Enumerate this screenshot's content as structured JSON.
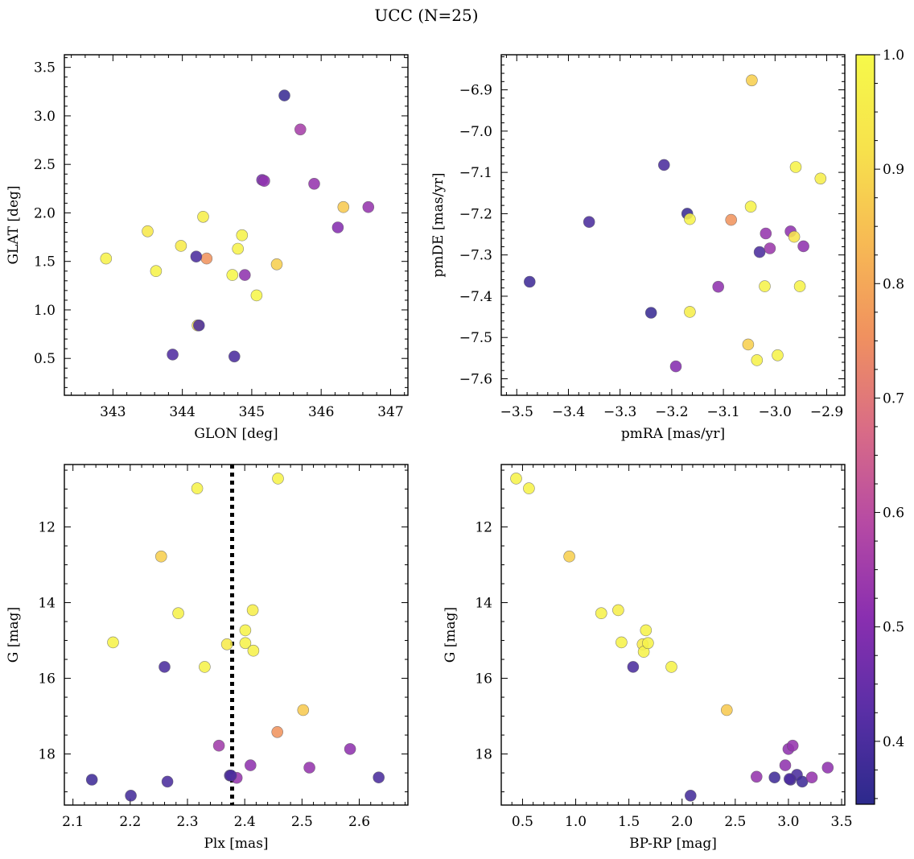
{
  "figure": {
    "suptitle": "UCC (N=25)"
  },
  "colorbar": {
    "range": [
      0.345,
      1.0
    ],
    "ticks": [
      0.4,
      0.5,
      0.6,
      0.7,
      0.8,
      0.9,
      1.0
    ],
    "tick_labels": [
      "0.4",
      "0.5",
      "0.6",
      "0.7",
      "0.8",
      "0.9",
      "1.0"
    ],
    "colormap": "plasma",
    "stops": [
      "#2c2a8c",
      "#5a2fa6",
      "#8a2fb0",
      "#b64aa4",
      "#d96c86",
      "#f0915f",
      "#f7ba54",
      "#f7e24c",
      "#f6f94a"
    ]
  },
  "chart_data": [
    {
      "type": "scatter",
      "title": "",
      "xlabel": "GLON [deg]",
      "ylabel": "GLAT [deg]",
      "xlim": [
        342.3,
        347.25
      ],
      "ylim": [
        0.12,
        3.63
      ],
      "xticks": [
        343,
        344,
        345,
        346,
        347
      ],
      "xtick_labels": [
        "343",
        "344",
        "345",
        "346",
        "347"
      ],
      "yticks": [
        0.5,
        1.0,
        1.5,
        2.0,
        2.5,
        3.0,
        3.5
      ],
      "ytick_labels": [
        "0.5",
        "1.0",
        "1.5",
        "2.0",
        "2.5",
        "3.0",
        "3.5"
      ],
      "x": [
        342.9,
        343.5,
        343.62,
        343.98,
        344.3,
        344.72,
        344.8,
        344.86,
        345.07,
        344.22,
        344.35,
        345.36,
        346.32,
        344.2,
        344.24,
        343.86,
        344.75,
        344.9,
        345.15,
        345.18,
        345.47,
        345.7,
        345.9,
        346.24,
        346.68
      ],
      "y": [
        1.53,
        1.81,
        1.4,
        1.66,
        1.96,
        1.36,
        1.63,
        1.77,
        1.15,
        0.84,
        1.53,
        1.47,
        2.06,
        1.55,
        0.84,
        0.54,
        0.52,
        1.36,
        2.34,
        2.33,
        3.21,
        2.86,
        2.3,
        1.85,
        2.06
      ],
      "color": [
        0.97,
        0.94,
        0.98,
        0.95,
        0.96,
        0.99,
        0.97,
        0.98,
        0.99,
        0.92,
        0.76,
        0.88,
        0.87,
        0.4,
        0.4,
        0.41,
        0.4,
        0.52,
        0.48,
        0.52,
        0.37,
        0.56,
        0.53,
        0.5,
        0.53
      ]
    },
    {
      "type": "scatter",
      "title": "",
      "xlabel": "pmRA [mas/yr]",
      "ylabel": "pmDE [mas/yr]",
      "xlim": [
        -3.53,
        -2.865
      ],
      "ylim": [
        -7.64,
        -6.815
      ],
      "xticks": [
        -3.5,
        -3.4,
        -3.3,
        -3.2,
        -3.1,
        -3.0,
        -2.9
      ],
      "xtick_labels": [
        "−3.5",
        "−3.4",
        "−3.3",
        "−3.2",
        "−3.1",
        "−3.0",
        "−2.9"
      ],
      "yticks": [
        -6.9,
        -7.0,
        -7.1,
        -7.2,
        -7.3,
        -7.4,
        -7.5,
        -7.6
      ],
      "ytick_labels": [
        "−6.9",
        "−7.0",
        "−7.1",
        "−7.2",
        "−7.3",
        "−7.4",
        "−7.5",
        "−7.6"
      ],
      "x": [
        -3.475,
        -3.36,
        -3.24,
        -3.215,
        -3.17,
        -3.165,
        -3.165,
        -3.11,
        -3.085,
        -3.052,
        -3.047,
        -3.045,
        -3.035,
        -3.03,
        -3.018,
        -3.02,
        -3.01,
        -2.995,
        -2.97,
        -2.963,
        -2.96,
        -2.952,
        -2.945,
        -2.912,
        -3.192
      ],
      "y": [
        -7.365,
        -7.22,
        -7.44,
        -7.082,
        -7.2,
        -7.213,
        -7.438,
        -7.377,
        -7.215,
        -7.517,
        -7.183,
        -6.877,
        -7.555,
        -7.293,
        -7.248,
        -7.376,
        -7.284,
        -7.543,
        -7.243,
        -7.256,
        -7.087,
        -7.376,
        -7.279,
        -7.115,
        -7.57
      ],
      "color": [
        0.38,
        0.4,
        0.37,
        0.4,
        0.37,
        0.98,
        0.96,
        0.52,
        0.76,
        0.88,
        0.98,
        0.88,
        0.97,
        0.4,
        0.53,
        0.98,
        0.54,
        0.98,
        0.52,
        0.93,
        0.98,
        0.98,
        0.52,
        0.96,
        0.5
      ]
    },
    {
      "type": "scatter",
      "title": "",
      "xlabel": "Plx [mas]",
      "ylabel": "G [mag]",
      "xlim": [
        2.085,
        2.685
      ],
      "ylim": [
        19.35,
        10.35
      ],
      "y_inverted": true,
      "reference_line": {
        "axis": "x",
        "value": 2.378,
        "style": "dotted",
        "color": "#000000"
      },
      "xticks": [
        2.1,
        2.2,
        2.3,
        2.4,
        2.5,
        2.6
      ],
      "xtick_labels": [
        "2.1",
        "2.2",
        "2.3",
        "2.4",
        "2.5",
        "2.6"
      ],
      "yticks": [
        12,
        14,
        16,
        18
      ],
      "ytick_labels": [
        "12",
        "14",
        "16",
        "18"
      ],
      "x": [
        2.458,
        2.317,
        2.254,
        2.284,
        2.414,
        2.401,
        2.17,
        2.369,
        2.401,
        2.33,
        2.415,
        2.502,
        2.457,
        2.26,
        2.133,
        2.201,
        2.265,
        2.355,
        2.374,
        2.386,
        2.41,
        2.513,
        2.584,
        2.634,
        2.376
      ],
      "y": [
        10.72,
        10.98,
        12.78,
        14.28,
        14.2,
        14.73,
        15.05,
        15.1,
        15.07,
        15.7,
        15.27,
        16.84,
        17.42,
        15.7,
        18.68,
        19.1,
        18.73,
        17.78,
        18.57,
        18.63,
        18.3,
        18.36,
        17.87,
        18.62,
        18.57
      ],
      "color": [
        0.98,
        0.98,
        0.88,
        0.97,
        0.96,
        0.98,
        0.98,
        0.95,
        0.98,
        0.98,
        0.97,
        0.87,
        0.76,
        0.4,
        0.38,
        0.39,
        0.4,
        0.55,
        0.4,
        0.53,
        0.52,
        0.53,
        0.52,
        0.4,
        0.4
      ]
    },
    {
      "type": "scatter",
      "title": "",
      "xlabel": "BP-RP [mag]",
      "ylabel": "G [mag]",
      "xlim": [
        0.3,
        3.53
      ],
      "ylim": [
        19.35,
        10.35
      ],
      "y_inverted": true,
      "xticks": [
        0.5,
        1.0,
        1.5,
        2.0,
        2.5,
        3.0,
        3.5
      ],
      "xtick_labels": [
        "0.5",
        "1.0",
        "1.5",
        "2.0",
        "2.5",
        "3.0",
        "3.5"
      ],
      "yticks": [
        12,
        14,
        16,
        18
      ],
      "ytick_labels": [
        "12",
        "14",
        "16",
        "18"
      ],
      "x": [
        0.44,
        0.56,
        0.94,
        1.24,
        1.4,
        1.43,
        1.63,
        1.64,
        1.66,
        1.68,
        1.9,
        1.54,
        2.42,
        2.08,
        2.7,
        2.87,
        2.97,
        3.0,
        3.04,
        3.02,
        3.08,
        3.13,
        3.22,
        3.37,
        3.01
      ],
      "y": [
        10.72,
        10.98,
        12.78,
        14.28,
        14.2,
        15.05,
        15.1,
        15.3,
        14.73,
        15.07,
        15.7,
        15.7,
        16.84,
        19.1,
        18.6,
        18.62,
        18.3,
        17.87,
        17.78,
        18.68,
        18.55,
        18.73,
        18.62,
        18.36,
        18.66
      ],
      "color": [
        0.98,
        0.98,
        0.88,
        0.97,
        0.96,
        0.98,
        0.95,
        0.98,
        0.98,
        0.98,
        0.98,
        0.4,
        0.87,
        0.39,
        0.53,
        0.38,
        0.52,
        0.52,
        0.53,
        0.4,
        0.4,
        0.38,
        0.53,
        0.52,
        0.4
      ]
    }
  ]
}
